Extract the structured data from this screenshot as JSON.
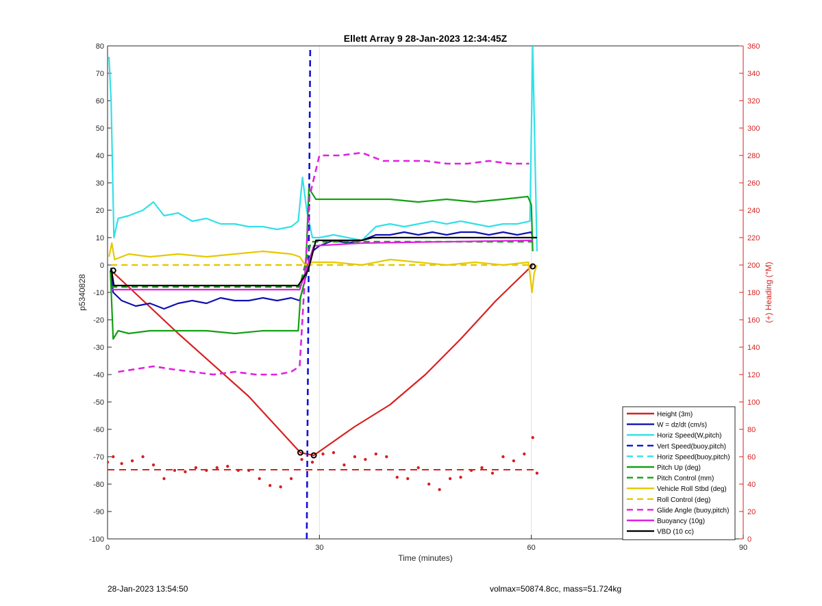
{
  "chart_data": {
    "type": "line",
    "title": "Ellett Array 9 28-Jan-2023 12:34:45Z",
    "xlabel": "Time (minutes)",
    "ylabel_left": "p5340828",
    "ylabel_right": "(+) Heading (°M)",
    "xlim": [
      0,
      90
    ],
    "ylim_left": [
      -100,
      80
    ],
    "ylim_right": [
      0,
      360
    ],
    "x_ticks": [
      0,
      30,
      60,
      90
    ],
    "y_ticks_left": [
      80,
      70,
      60,
      50,
      40,
      30,
      20,
      10,
      0,
      -10,
      -20,
      -30,
      -40,
      -50,
      -60,
      -70,
      -80,
      -90,
      -100
    ],
    "y_ticks_right": [
      360,
      340,
      320,
      300,
      280,
      260,
      240,
      220,
      200,
      180,
      160,
      140,
      120,
      100,
      80,
      60,
      40,
      20,
      0
    ],
    "grid": "vertical lines at 30 and 60",
    "legend_position": "bottom-right",
    "series": [
      {
        "name": "Height (3m)",
        "color": "#d62020",
        "style": "solid",
        "x": [
          0.5,
          10,
          20,
          27.3,
          29.2,
          35,
          40,
          45,
          50,
          55,
          60.2
        ],
        "y": [
          -2,
          -25,
          -48,
          -68.5,
          -69.5,
          -59,
          -51,
          -40,
          -27,
          -13,
          0
        ]
      },
      {
        "name": "W = dz/dt (cm/s)",
        "color": "#1010b0",
        "style": "solid",
        "x": [
          0.4,
          0.8,
          2,
          4,
          6,
          8,
          10,
          12,
          14,
          16,
          18,
          20,
          22,
          24,
          26,
          27.2,
          28,
          29,
          30,
          32,
          34,
          36,
          38,
          40,
          42,
          44,
          46,
          48,
          50,
          52,
          54,
          56,
          58,
          60,
          60.2
        ],
        "y": [
          -2,
          -10,
          -13,
          -15,
          -14,
          -16,
          -14,
          -13,
          -14,
          -12,
          -13,
          -13,
          -12,
          -13,
          -12,
          -13,
          -5,
          5,
          7,
          9,
          8,
          9,
          11,
          11,
          12,
          11,
          12,
          11,
          12,
          12,
          11,
          12,
          11,
          12,
          10
        ]
      },
      {
        "name": "Horiz Speed(W,pitch)",
        "color": "#30e0e8",
        "style": "solid",
        "x": [
          0.2,
          0.5,
          0.9,
          1.5,
          3,
          5,
          6.5,
          8,
          10,
          12,
          14,
          16,
          18,
          20,
          22,
          24,
          26,
          27,
          27.6,
          28.2,
          29,
          30,
          32,
          34,
          36,
          38,
          40,
          42,
          44,
          46,
          48,
          50,
          52,
          54,
          56,
          58,
          59.8,
          60.2,
          60.8
        ],
        "y": [
          76,
          60,
          10,
          17,
          18,
          20,
          23,
          18,
          19,
          16,
          17,
          15,
          15,
          14,
          14,
          13,
          14,
          16,
          32,
          20,
          10,
          10,
          11,
          10,
          9,
          14,
          15,
          14,
          15,
          16,
          15,
          16,
          15,
          14,
          15,
          15,
          16,
          80,
          5
        ]
      },
      {
        "name": "Vert Speed(buoy,pitch)",
        "color": "#1010d8",
        "style": "dashed",
        "x": [
          28.2,
          28.7
        ],
        "y": [
          -100,
          80
        ]
      },
      {
        "name": "Horiz Speed(buoy,pitch)",
        "color": "#30e0e8",
        "style": "dashed",
        "x": [],
        "y": []
      },
      {
        "name": "Pitch Up (deg)",
        "color": "#12a012",
        "style": "solid",
        "x": [
          0.4,
          0.8,
          1.5,
          3,
          6,
          10,
          14,
          18,
          22,
          26,
          27,
          27.3,
          28,
          28.5,
          29.5,
          32,
          36,
          40,
          44,
          48,
          52,
          56,
          59.5,
          60,
          60.2
        ],
        "y": [
          -2,
          -27,
          -24,
          -25,
          -24,
          -24,
          -24,
          -25,
          -24,
          -24,
          -24,
          -12,
          -5,
          28,
          24,
          24,
          24,
          24,
          23,
          24,
          23,
          24,
          25,
          22,
          5
        ]
      },
      {
        "name": "Pitch Control (mm)",
        "color": "#12a012",
        "style": "dashed",
        "x": [
          0.5,
          27.2,
          28.8,
          60.2
        ],
        "y": [
          -8,
          -8,
          8.5,
          8.5
        ]
      },
      {
        "name": "Vehicle Roll Stbd (deg)",
        "color": "#e6c800",
        "style": "solid",
        "x": [
          0.2,
          0.6,
          1,
          3,
          6,
          10,
          14,
          18,
          22,
          26,
          27.2,
          28,
          29,
          32,
          36,
          40,
          44,
          48,
          52,
          56,
          59.6,
          60.1,
          60.4,
          60.8
        ],
        "y": [
          3,
          8,
          2,
          4,
          3,
          4,
          3,
          4,
          5,
          4,
          3,
          0,
          1,
          1,
          0,
          2,
          1,
          0,
          1,
          0,
          1,
          -10,
          -3,
          0
        ]
      },
      {
        "name": "Roll Control (deg)",
        "color": "#e6c800",
        "style": "dashed",
        "x": [
          0.5,
          60.2
        ],
        "y": [
          0,
          0
        ]
      },
      {
        "name": "Glide Angle (buoy,pitch)",
        "color": "#e020e0",
        "style": "dashed",
        "x": [
          1.5,
          4,
          6.5,
          9,
          12,
          15,
          18,
          21,
          24,
          26,
          27.2,
          28.6,
          30,
          33,
          36,
          39,
          42,
          45,
          48,
          51,
          54,
          57,
          59.7
        ],
        "y": [
          -39,
          -38,
          -37,
          -38,
          -39,
          -40,
          -39,
          -40,
          -40,
          -39,
          -37,
          25,
          40,
          40,
          41,
          38,
          38,
          38,
          37,
          37,
          38,
          37,
          37
        ]
      },
      {
        "name": "Buoyancy (10g)",
        "color": "#e020e0",
        "style": "solid",
        "x": [
          0.5,
          27.2,
          29.2,
          36,
          60.2
        ],
        "y": [
          -9,
          -9,
          7,
          8,
          9
        ]
      },
      {
        "name": "VBD (10 cc)",
        "color": "#000000",
        "style": "solid",
        "x": [
          0.5,
          0.9,
          27,
          28.4,
          29.5,
          36,
          37.5,
          60.2,
          60.8
        ],
        "y": [
          -1,
          -7.5,
          -7.5,
          -2,
          9,
          9,
          10,
          10,
          10
        ]
      }
    ],
    "heading_scatter": {
      "axis": "right",
      "color": "#d62020",
      "mean": 50.5,
      "points_x": [
        0,
        0.8,
        2,
        3.5,
        5,
        6.5,
        8,
        9.5,
        11,
        12.5,
        14,
        15.5,
        17,
        18.5,
        20,
        21.5,
        23,
        24.5,
        26,
        27.5,
        29,
        30.5,
        32,
        33.5,
        35,
        36.5,
        38,
        39.5,
        41,
        42.5,
        44,
        45.5,
        47,
        48.5,
        50,
        51.5,
        53,
        54.5,
        56,
        57.5,
        59,
        60.2,
        60.8
      ],
      "points_y": [
        56,
        60,
        55,
        57,
        60,
        54,
        44,
        50,
        49,
        52,
        50,
        52,
        53,
        50,
        50,
        44,
        39,
        38,
        44,
        58,
        56,
        62,
        63,
        54,
        60,
        58,
        62,
        60,
        45,
        44,
        52,
        40,
        36,
        44,
        45,
        50,
        52,
        48,
        60,
        57,
        62,
        74,
        48
      ]
    },
    "markers": {
      "color": "#000000",
      "points": [
        [
          0.8,
          -2
        ],
        [
          27.3,
          -68.5
        ],
        [
          29.2,
          -69.5
        ],
        [
          60.2,
          -0.5
        ]
      ]
    }
  },
  "footer": {
    "timestamp": "28-Jan-2023 13:54:50",
    "info": "volmax=50874.8cc, mass=51.724kg"
  }
}
